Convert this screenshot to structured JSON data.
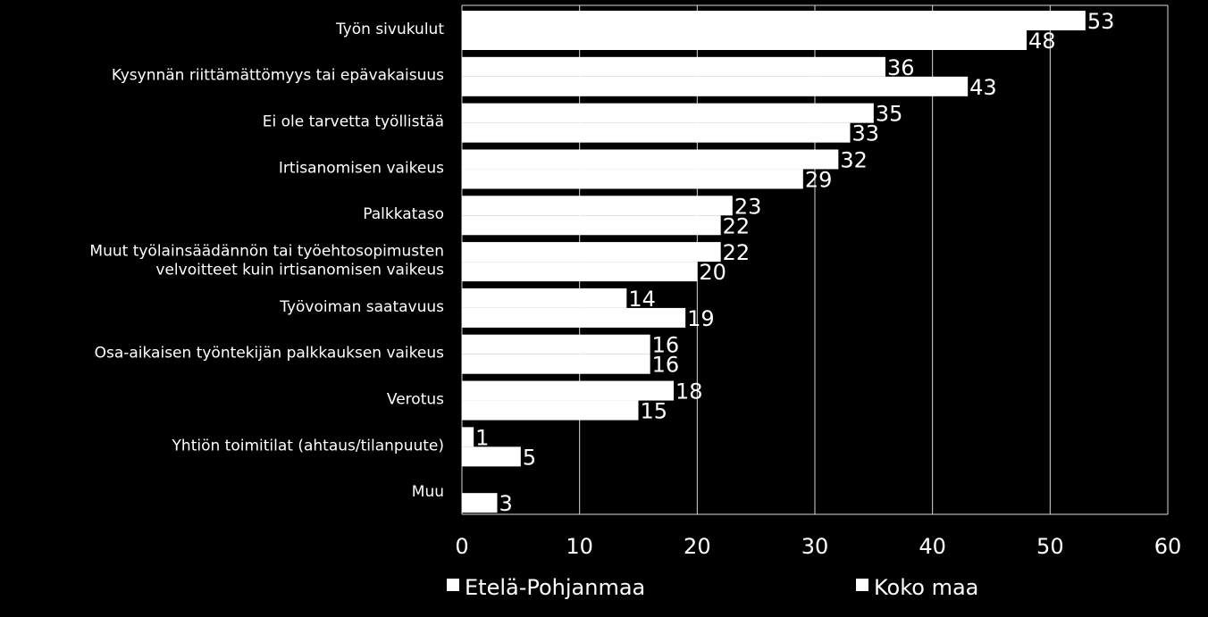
{
  "chart_data": {
    "type": "bar",
    "orientation": "horizontal",
    "categories": [
      [
        "Työn sivukulut"
      ],
      [
        "Kysynnän riittämättömyys tai epävakaisuus"
      ],
      [
        "Ei ole tarvetta työllistää"
      ],
      [
        "Irtisanomisen vaikeus"
      ],
      [
        "Palkkataso"
      ],
      [
        "Muut työlainsäädännön tai työehtosopimusten",
        "velvoitteet kuin irtisanomisen vaikeus"
      ],
      [
        "Työvoiman saatavuus"
      ],
      [
        "Osa-aikaisen työntekijän palkkauksen vaikeus"
      ],
      [
        "Verotus"
      ],
      [
        "Yhtiön toimitilat (ahtaus/tilanpuute)"
      ],
      [
        "Muu"
      ]
    ],
    "series": [
      {
        "name": "Etelä-Pohjanmaa",
        "color": "#ffffff",
        "values": [
          53,
          36,
          35,
          32,
          23,
          22,
          14,
          16,
          18,
          1,
          null
        ]
      },
      {
        "name": "Koko maa",
        "color": "#ffffff",
        "values": [
          48,
          43,
          33,
          29,
          22,
          20,
          19,
          16,
          15,
          5,
          3
        ]
      }
    ],
    "xlim": [
      0,
      60
    ],
    "xticks": [
      0,
      10,
      20,
      30,
      40,
      50,
      60
    ],
    "grid": true,
    "legend_position": "bottom",
    "background": "#000000"
  }
}
